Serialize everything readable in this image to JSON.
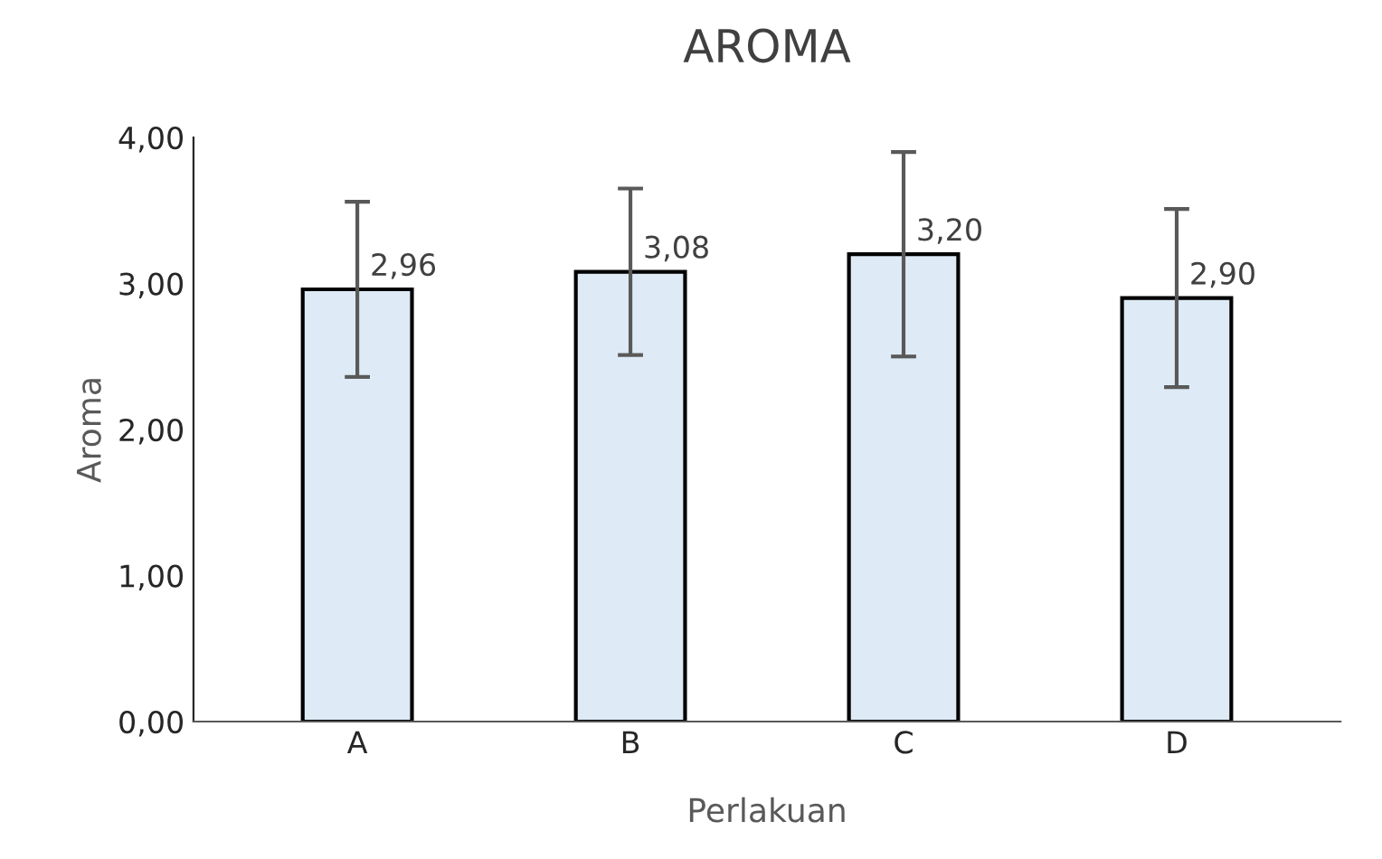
{
  "chart_data": {
    "type": "bar",
    "title": "AROMA",
    "xlabel": "Perlakuan",
    "ylabel": "Aroma",
    "categories": [
      "A",
      "B",
      "C",
      "D"
    ],
    "values": [
      2.96,
      3.08,
      3.2,
      2.9
    ],
    "value_labels": [
      "2,96",
      "3,08",
      "3,20",
      "2,90"
    ],
    "errors": [
      0.6,
      0.57,
      0.7,
      0.61
    ],
    "color": "#deebf7",
    "ylim": [
      0,
      4
    ],
    "yticks": [
      {
        "value": 0,
        "label": "0,00"
      },
      {
        "value": 1,
        "label": "1,00"
      },
      {
        "value": 2,
        "label": "2,00"
      },
      {
        "value": 3,
        "label": "3,00"
      },
      {
        "value": 4,
        "label": "4,00"
      }
    ],
    "grid": false,
    "legend": false
  }
}
